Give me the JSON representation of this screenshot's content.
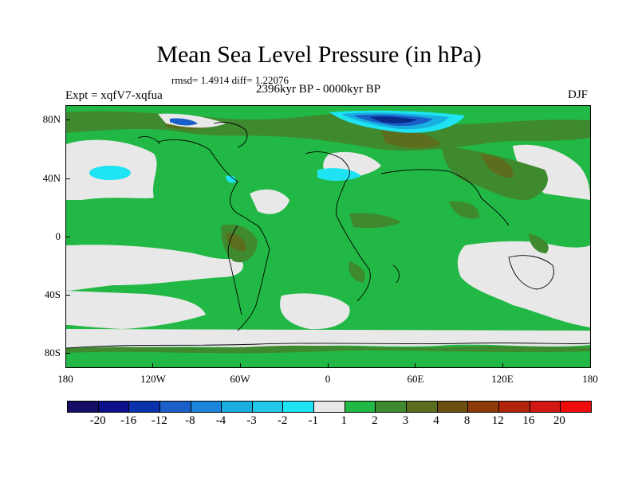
{
  "title": "Mean Sea Level Pressure (in hPa)",
  "stats": "rmsd= 1.4914 diff= 1.22076",
  "experiment": "Expt = xqfV7-xqfua",
  "period": "2396kyr BP - 0000kyr BP",
  "season": "DJF",
  "axes": {
    "y_labels": [
      "80N",
      "40N",
      "0",
      "40S",
      "80S"
    ],
    "x_labels": [
      "180",
      "120W",
      "60W",
      "0",
      "60E",
      "120E",
      "180"
    ]
  },
  "colorbar": {
    "labels": [
      "-20",
      "-16",
      "-12",
      "-8",
      "-4",
      "-3",
      "-2",
      "-1",
      "1",
      "2",
      "3",
      "4",
      "8",
      "12",
      "16",
      "20"
    ],
    "colors": [
      "#150d66",
      "#0b0f8a",
      "#0a32ad",
      "#1b5fc8",
      "#1a85da",
      "#19aee0",
      "#22c8e8",
      "#1ee3f2",
      "#e8e8e8",
      "#22b845",
      "#3f8a2e",
      "#5c6e1e",
      "#6b4e10",
      "#8c3a08",
      "#b0240a",
      "#d21812",
      "#ee0c0c"
    ]
  },
  "palette": {
    "ocean_neutral": "#e8e8e8",
    "positive_low": "#22b845",
    "positive_mid": "#3f8a2e",
    "positive_high": "#5c6e1e",
    "negative_low": "#1ee3f2",
    "negative_mid": "#19aee0",
    "negative_high": "#1a5fc8",
    "negative_peak": "#0a2a8a"
  }
}
